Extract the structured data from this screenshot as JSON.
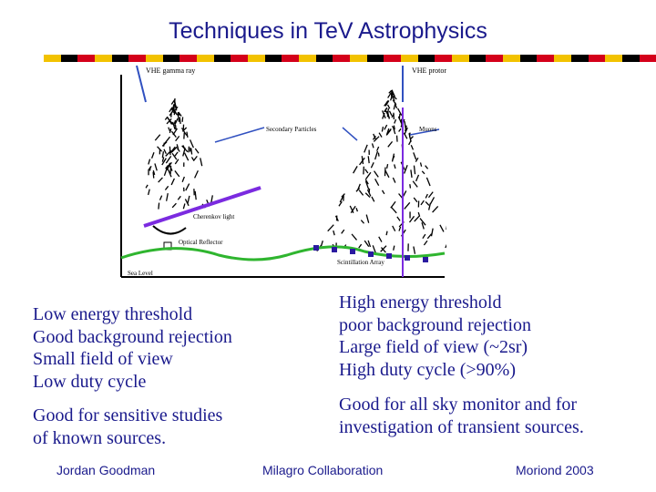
{
  "slide": {
    "title": "Techniques in TeV Astrophysics"
  },
  "stripe_colors": [
    "#f2c200",
    "#000000",
    "#d4001a",
    "#f2c200",
    "#000000",
    "#d4001a"
  ],
  "figure": {
    "labels": {
      "gamma": "VHE gamma ray",
      "proton": "VHE proton",
      "secondary": "Secondary Particles",
      "muons": "Muons",
      "cherenkov": "Cherenkov light",
      "reflector": "Optical Reflector",
      "scintillation": "Scintillation Array",
      "sea_level": "Sea Level"
    },
    "colors": {
      "cherenkov_beam": "#7b2be0",
      "ground": "#2fb52f",
      "scintillator": "#2a1aa0",
      "arrow": "#3050c0"
    }
  },
  "left_column": {
    "lines": [
      "Low energy threshold",
      "Good background rejection",
      "Small field of view",
      "Low duty cycle"
    ],
    "summary": [
      "Good for sensitive studies",
      "of known sources."
    ]
  },
  "right_column": {
    "lines": [
      "High energy threshold",
      "poor background rejection",
      "Large field of view (~2sr)",
      "High duty cycle (>90%)"
    ],
    "summary": [
      "Good for all sky monitor and for",
      "investigation of transient sources."
    ]
  },
  "footer": {
    "left": "Jordan Goodman",
    "center": "Milagro Collaboration",
    "right": "Moriond 2003"
  }
}
